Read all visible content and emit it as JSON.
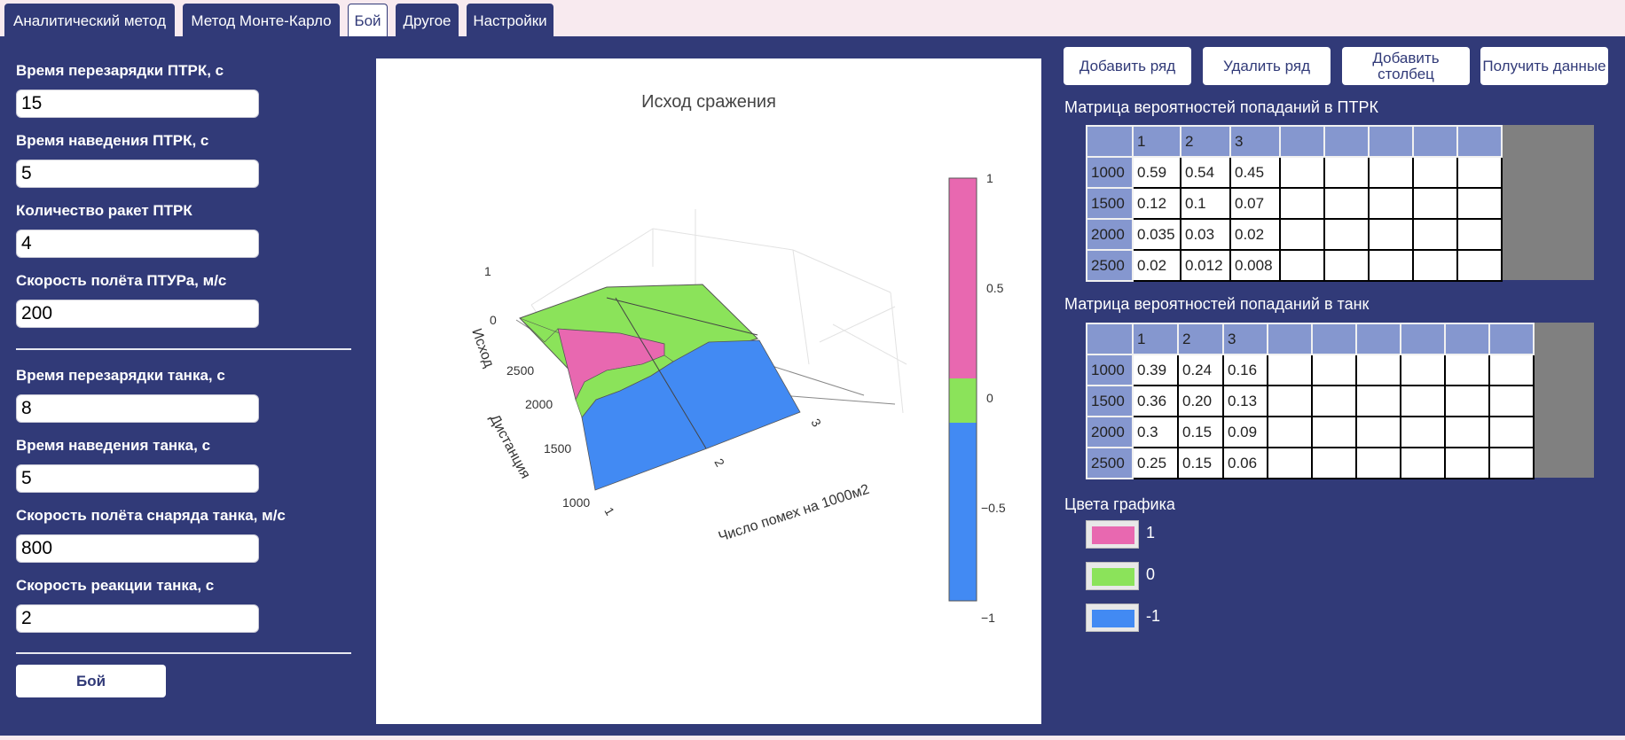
{
  "tabs": [
    {
      "label": "Аналитический метод"
    },
    {
      "label": "Метод Монте-Карло"
    },
    {
      "label": "Бой"
    },
    {
      "label": "Другое"
    },
    {
      "label": "Настройки"
    }
  ],
  "active_tab": "Бой",
  "left_panel": {
    "atgm_fields": [
      {
        "label": "Время перезарядки ПТРК, с",
        "value": "15"
      },
      {
        "label": "Время наведения ПТРК, с",
        "value": "5"
      },
      {
        "label": "Количество ракет ПТРК",
        "value": "4"
      },
      {
        "label": "Скорость полёта ПТУРа, м/с",
        "value": "200"
      }
    ],
    "tank_fields": [
      {
        "label": "Время перезарядки танка, с",
        "value": "8"
      },
      {
        "label": "Время наведения танка, с",
        "value": "5"
      },
      {
        "label": "Скорость полёта снаряда танка, м/с",
        "value": "800"
      },
      {
        "label": "Скорость реакции танка, с",
        "value": "2"
      }
    ],
    "fight_button": "Бой"
  },
  "plot": {
    "title": "Исход сражения",
    "z_axis_label": "Исход",
    "y_axis_label": "Дистанция",
    "x_axis_label": "Число помех на 1000м2",
    "z_ticks": [
      "1",
      "0"
    ],
    "y_ticks": [
      "2500",
      "2000",
      "1500",
      "1000"
    ],
    "x_ticks": [
      "1",
      "2",
      "3"
    ],
    "colorbar_ticks": [
      "1",
      "0.5",
      "0",
      "−0.5",
      "−1"
    ]
  },
  "right_panel": {
    "buttons": [
      "Добавить ряд",
      "Удалить ряд",
      "Добавить столбец",
      "Получить данные"
    ],
    "atgm_matrix": {
      "title": "Матрица вероятностей попаданий в ПТРК",
      "columns": [
        "1",
        "2",
        "3",
        "",
        "",
        "",
        "",
        ""
      ],
      "rows": [
        {
          "head": "1000",
          "cells": [
            "0.59",
            "0.54",
            "0.45",
            "",
            "",
            "",
            "",
            ""
          ]
        },
        {
          "head": "1500",
          "cells": [
            "0.12",
            "0.1",
            "0.07",
            "",
            "",
            "",
            "",
            ""
          ]
        },
        {
          "head": "2000",
          "cells": [
            "0.035",
            "0.03",
            "0.02",
            "",
            "",
            "",
            "",
            ""
          ]
        },
        {
          "head": "2500",
          "cells": [
            "0.02",
            "0.012",
            "0.008",
            "",
            "",
            "",
            "",
            ""
          ]
        }
      ]
    },
    "tank_matrix": {
      "title": "Матрица вероятностей попаданий в танк",
      "columns": [
        "1",
        "2",
        "3",
        "",
        "",
        "",
        "",
        "",
        ""
      ],
      "rows": [
        {
          "head": "1000",
          "cells": [
            "0.39",
            "0.24",
            "0.16",
            "",
            "",
            "",
            "",
            "",
            ""
          ]
        },
        {
          "head": "1500",
          "cells": [
            "0.36",
            "0.20",
            "0.13",
            "",
            "",
            "",
            "",
            "",
            ""
          ]
        },
        {
          "head": "2000",
          "cells": [
            "0.3",
            "0.15",
            "0.09",
            "",
            "",
            "",
            "",
            "",
            ""
          ]
        },
        {
          "head": "2500",
          "cells": [
            "0.25",
            "0.15",
            "0.06",
            "",
            "",
            "",
            "",
            "",
            ""
          ]
        }
      ]
    },
    "colors_title": "Цвета графика",
    "colors": [
      {
        "label": "1",
        "color": "#e868b0"
      },
      {
        "label": "0",
        "color": "#8be35a"
      },
      {
        "label": "-1",
        "color": "#428af3"
      }
    ]
  }
}
